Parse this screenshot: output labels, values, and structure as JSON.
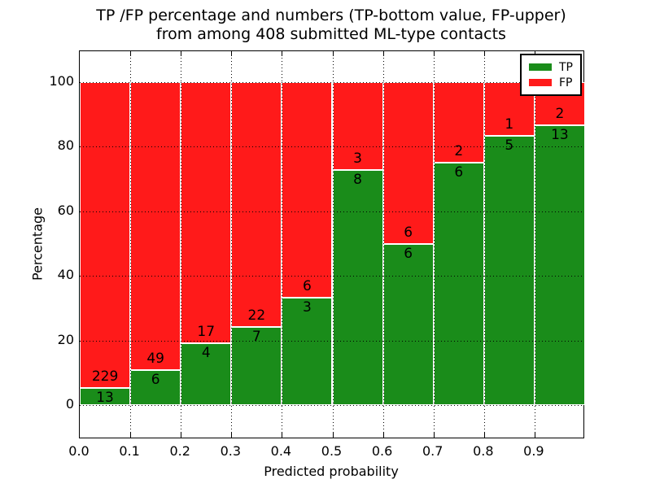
{
  "title": {
    "line1": "TP /FP percentage and numbers (TP-bottom value, FP-upper)",
    "line2": "from among 408 submitted ML-type contacts"
  },
  "axes": {
    "xlabel": "Predicted probability",
    "ylabel": "Percentage",
    "x_tick_labels": [
      "0.0",
      "0.1",
      "0.2",
      "0.3",
      "0.4",
      "0.5",
      "0.6",
      "0.7",
      "0.8",
      "0.9"
    ],
    "y_tick_labels": [
      "0",
      "20",
      "40",
      "60",
      "80",
      "100"
    ]
  },
  "legend": {
    "position": "upper-right",
    "items": [
      {
        "label": "TP",
        "color": "#1a8c1a"
      },
      {
        "label": "FP",
        "color": "#ff1a1a"
      }
    ]
  },
  "chart_data": {
    "type": "bar",
    "stacked": true,
    "normalized": "each bin scaled to 100%",
    "title": "TP /FP percentage and numbers (TP-bottom value, FP-upper) from among 408 submitted ML-type contacts",
    "xlabel": "Predicted probability",
    "ylabel": "Percentage",
    "total_contacts": 408,
    "grid": true,
    "legend_position": "upper right",
    "xlim": [
      0.0,
      1.0
    ],
    "ylim": [
      -10,
      110
    ],
    "x_ticks": [
      0.0,
      0.1,
      0.2,
      0.3,
      0.4,
      0.5,
      0.6,
      0.7,
      0.8,
      0.9
    ],
    "y_ticks": [
      0,
      20,
      40,
      60,
      80,
      100
    ],
    "bin_edges": [
      0.0,
      0.1,
      0.2,
      0.3,
      0.4,
      0.5,
      0.6,
      0.7,
      0.8,
      0.9,
      1.0
    ],
    "categories": [
      "0.0-0.1",
      "0.1-0.2",
      "0.2-0.3",
      "0.3-0.4",
      "0.4-0.5",
      "0.5-0.6",
      "0.6-0.7",
      "0.7-0.8",
      "0.8-0.9",
      "0.9-1.0"
    ],
    "series": [
      {
        "name": "TP",
        "color": "#1a8c1a",
        "counts": [
          13,
          6,
          4,
          7,
          3,
          8,
          6,
          6,
          5,
          13
        ],
        "percent": [
          5.37,
          10.91,
          19.05,
          24.14,
          33.33,
          72.73,
          50.0,
          75.0,
          83.33,
          86.67
        ]
      },
      {
        "name": "FP",
        "color": "#ff1a1a",
        "counts": [
          229,
          49,
          17,
          22,
          6,
          3,
          6,
          2,
          1,
          2
        ],
        "percent": [
          94.63,
          89.09,
          80.95,
          75.86,
          66.67,
          27.27,
          50.0,
          25.0,
          16.67,
          13.33
        ]
      }
    ]
  }
}
